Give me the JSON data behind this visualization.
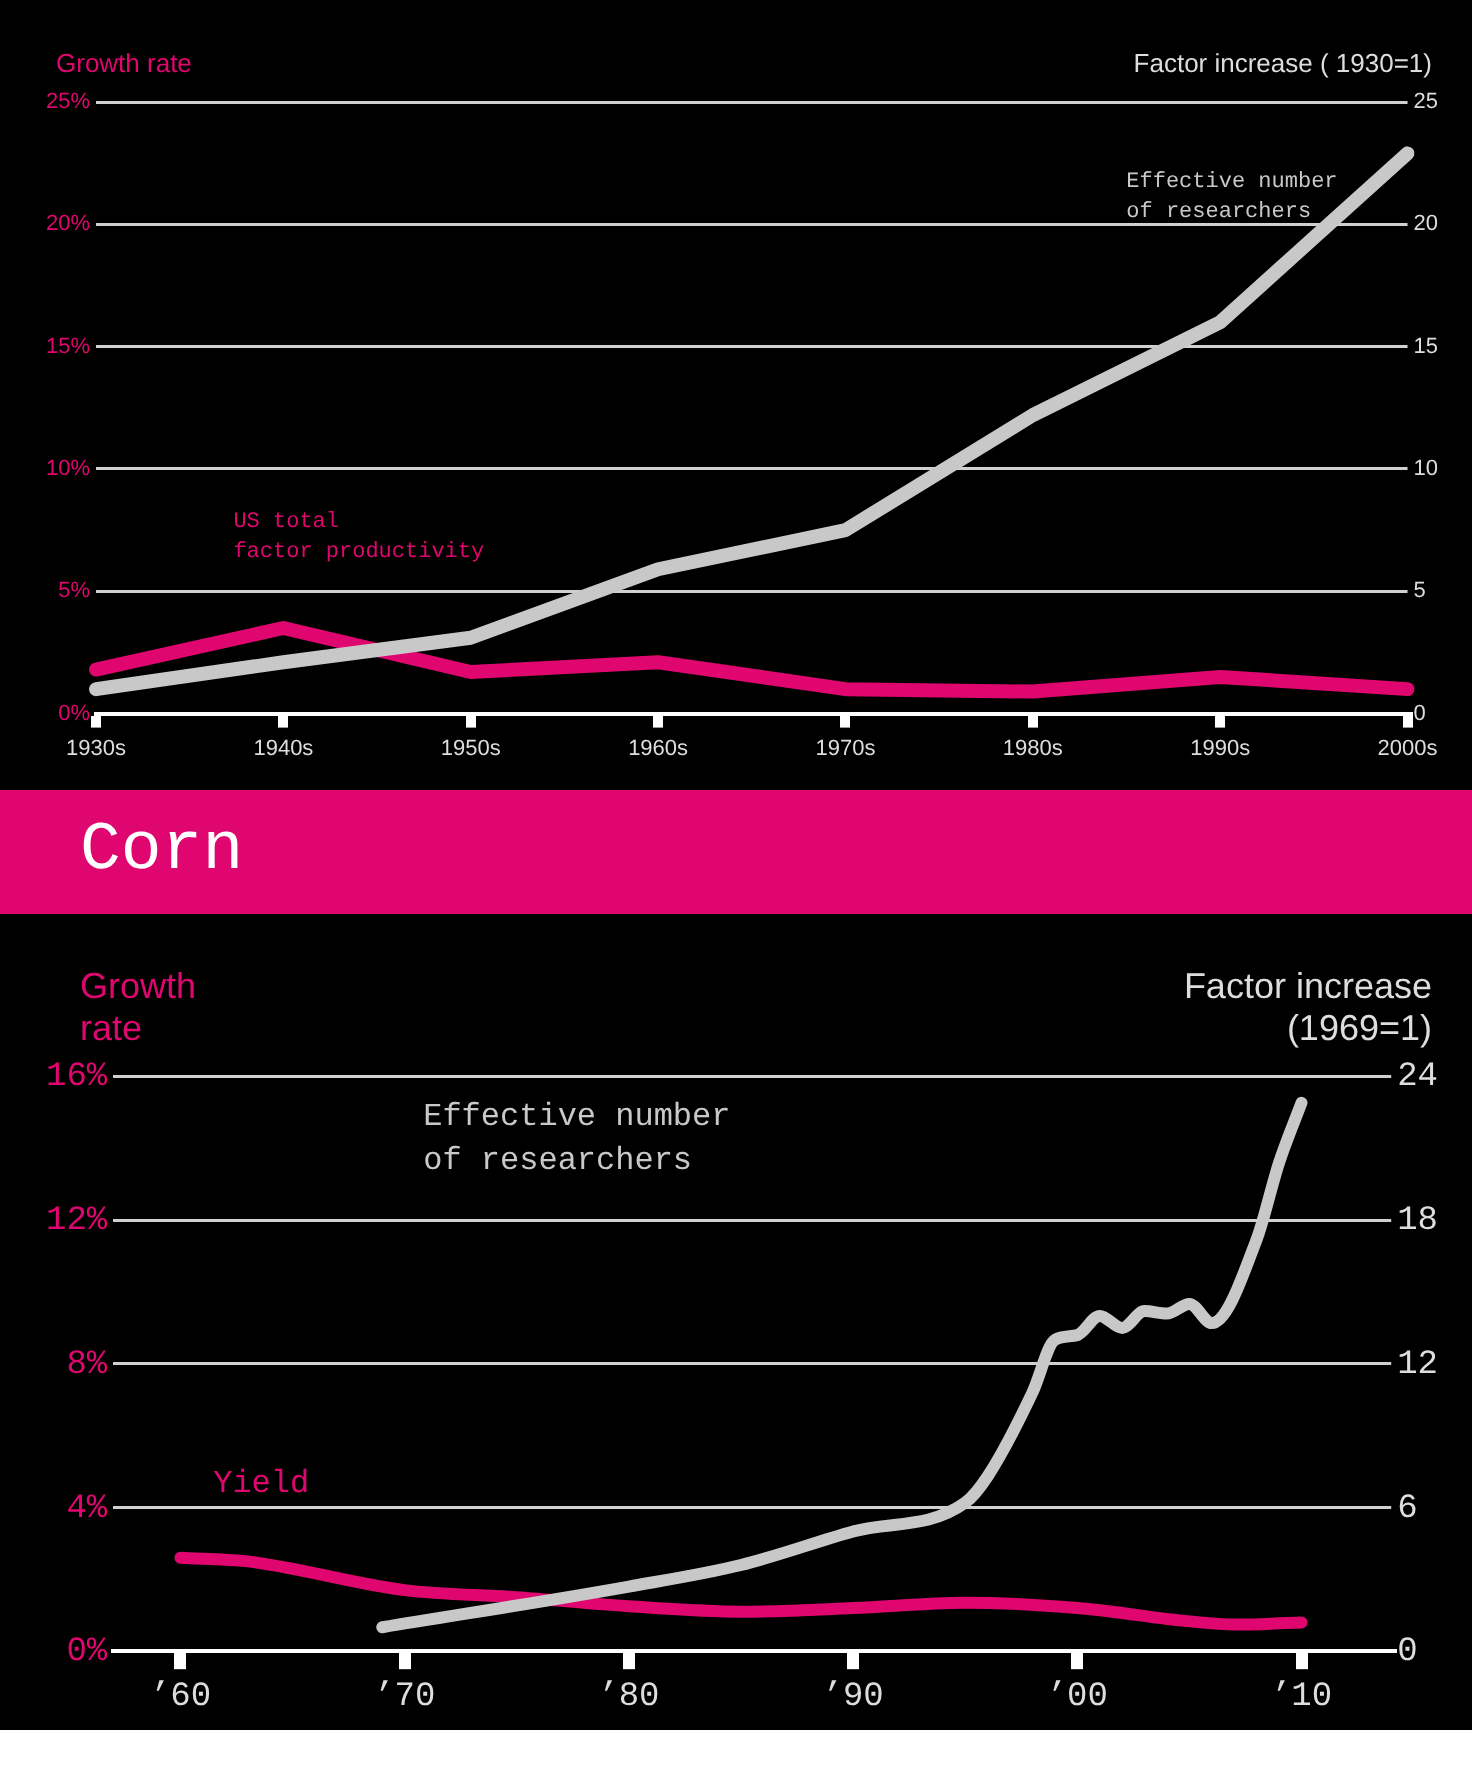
{
  "chart_data": [
    {
      "type": "line",
      "ylabel": "Growth rate",
      "y2label": "Factor increase ( 1930=1)",
      "categories": [
        "1930s",
        "1940s",
        "1950s",
        "1960s",
        "1970s",
        "1980s",
        "1990s",
        "2000s"
      ],
      "series": [
        {
          "name": "US total factor productivity",
          "color": "#e0066f",
          "values": [
            1.8,
            3.5,
            1.7,
            2.1,
            1.0,
            0.9,
            1.5,
            1.0
          ]
        },
        {
          "name": "Effective number of researchers",
          "color": "#c8c8c8",
          "axis": "y2",
          "values": [
            1.0,
            2.1,
            3.1,
            5.9,
            7.5,
            12.2,
            16,
            22.9
          ]
        }
      ],
      "ylim": [
        0,
        25
      ],
      "yticks": [
        {
          "value": 0,
          "label": "0%"
        },
        {
          "value": 5,
          "label": "5%"
        },
        {
          "value": 10,
          "label": "10%"
        },
        {
          "value": 15,
          "label": "15%"
        },
        {
          "value": 20,
          "label": "20%"
        },
        {
          "value": 25,
          "label": "25%"
        }
      ],
      "y2lim": [
        0,
        25
      ],
      "y2ticks": [
        0,
        5,
        10,
        15,
        20,
        25
      ],
      "grid": "y"
    },
    {
      "type": "line",
      "title": "Corn",
      "ylabel": "Growth rate",
      "y2label": "Factor increase (1969=1)",
      "xlim": [
        1957,
        2014
      ],
      "xticks": [
        {
          "value": 1960,
          "label": "’60"
        },
        {
          "value": 1970,
          "label": "’70"
        },
        {
          "value": 1980,
          "label": "’80"
        },
        {
          "value": 1990,
          "label": "’90"
        },
        {
          "value": 2000,
          "label": "’00"
        },
        {
          "value": 2010,
          "label": "’10"
        }
      ],
      "series": [
        {
          "name": "Yield",
          "color": "#e0066f",
          "x": [
            1960,
            1963,
            1970,
            1975,
            1980,
            1985,
            1990,
            1995,
            2000,
            2005,
            2007,
            2010
          ],
          "values": [
            2.6,
            2.5,
            1.7,
            1.5,
            1.25,
            1.1,
            1.2,
            1.35,
            1.2,
            0.83,
            0.74,
            0.8
          ]
        },
        {
          "name": "Effective number of researchers",
          "color": "#c8c8c8",
          "axis": "y2",
          "x": [
            1969,
            1980,
            1985,
            1990,
            1995,
            1996,
            1998,
            1999,
            2000,
            2001,
            2002,
            2003,
            2004,
            2005,
            2006,
            2008,
            2009,
            2010
          ],
          "values": [
            1.0,
            2.7,
            3.6,
            5.0,
            6.2,
            7.3,
            10.8,
            13.0,
            13.2,
            14.0,
            13.5,
            14.2,
            14.1,
            14.5,
            13.7,
            17.2,
            20.4,
            22.9
          ]
        }
      ],
      "ylim": [
        0,
        16
      ],
      "yticks": [
        {
          "value": 0,
          "label": "0%"
        },
        {
          "value": 4,
          "label": "4%"
        },
        {
          "value": 8,
          "label": "8%"
        },
        {
          "value": 12,
          "label": "12%"
        },
        {
          "value": 16,
          "label": "16%"
        }
      ],
      "y2lim": [
        0,
        24
      ],
      "y2ticks": [
        0,
        6,
        12,
        18,
        24
      ],
      "grid": "y"
    }
  ]
}
